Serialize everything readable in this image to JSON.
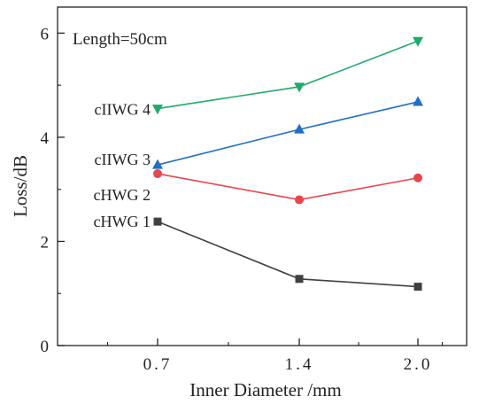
{
  "chart_data": {
    "type": "line",
    "x_categories": [
      "0.7",
      "1.4",
      "2.0"
    ],
    "xlabel": "Inner Diameter /mm",
    "ylabel": "Loss/dB",
    "ylim": [
      0,
      6.5
    ],
    "yticks": [
      0,
      2,
      4,
      6
    ],
    "annotation": "Length=50cm",
    "grid": false,
    "series": [
      {
        "name": "cHWG 1",
        "marker": "square",
        "color": "#404040",
        "values": [
          2.38,
          1.28,
          1.13
        ]
      },
      {
        "name": "cHWG 2",
        "marker": "circle",
        "color": "#e8464c",
        "values": [
          3.3,
          2.8,
          3.22
        ]
      },
      {
        "name": "cIIWG 3",
        "marker": "triangle-up",
        "color": "#1f6fc4",
        "values": [
          3.47,
          4.15,
          4.68
        ]
      },
      {
        "name": "cIIWG 4",
        "marker": "triangle-down",
        "color": "#1faa6b",
        "values": [
          4.55,
          4.97,
          5.85
        ]
      }
    ]
  }
}
